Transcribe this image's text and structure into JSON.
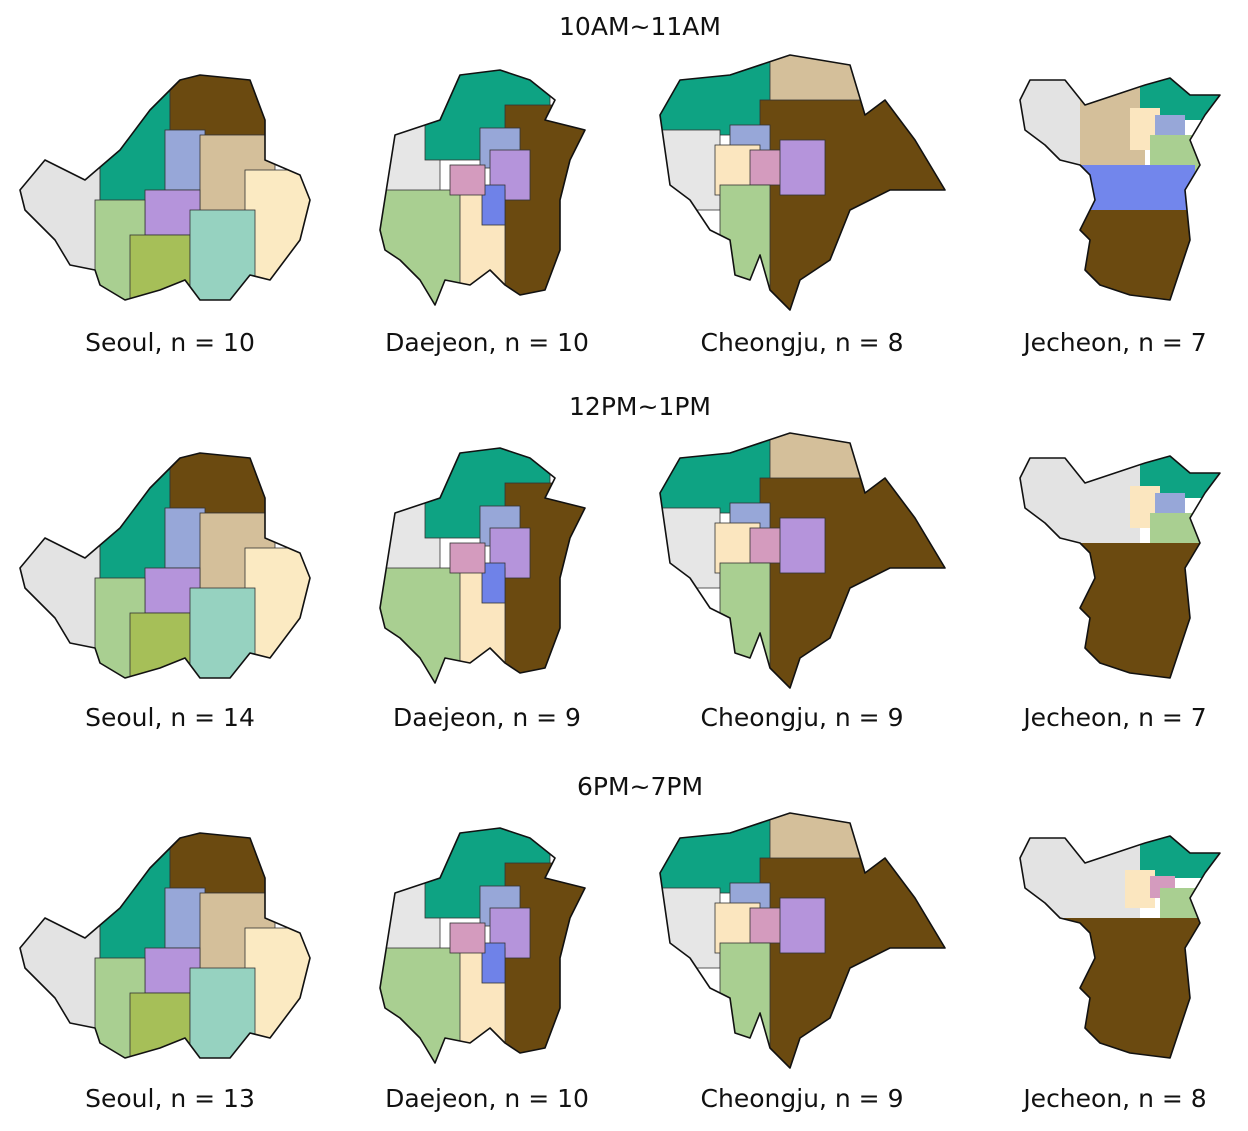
{
  "rows": [
    {
      "title": "10AM~11AM",
      "captions": [
        "Seoul, n = 10",
        "Daejeon, n = 10",
        "Cheongju, n = 8",
        "Jecheon, n = 7"
      ]
    },
    {
      "title": "12PM~1PM",
      "captions": [
        "Seoul, n = 14",
        "Daejeon, n = 9",
        "Cheongju, n = 9",
        "Jecheon, n = 7"
      ]
    },
    {
      "title": "6PM~7PM",
      "captions": [
        "Seoul, n = 13",
        "Daejeon, n = 10",
        "Cheongju, n = 9",
        "Jecheon, n = 8"
      ]
    }
  ]
}
